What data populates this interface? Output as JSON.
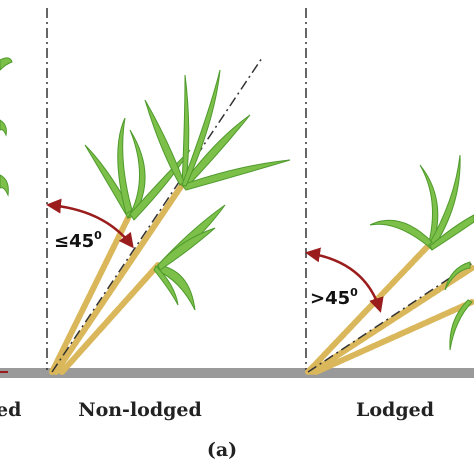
{
  "labels": {
    "left_partial": "ed",
    "non_lodged": "Non-lodged",
    "lodged": "Lodged",
    "panel": "(a)"
  },
  "angles": {
    "non_lodged": {
      "text": "≤45",
      "sup": "0"
    },
    "lodged": {
      "text": ">45",
      "sup": "0"
    }
  }
}
